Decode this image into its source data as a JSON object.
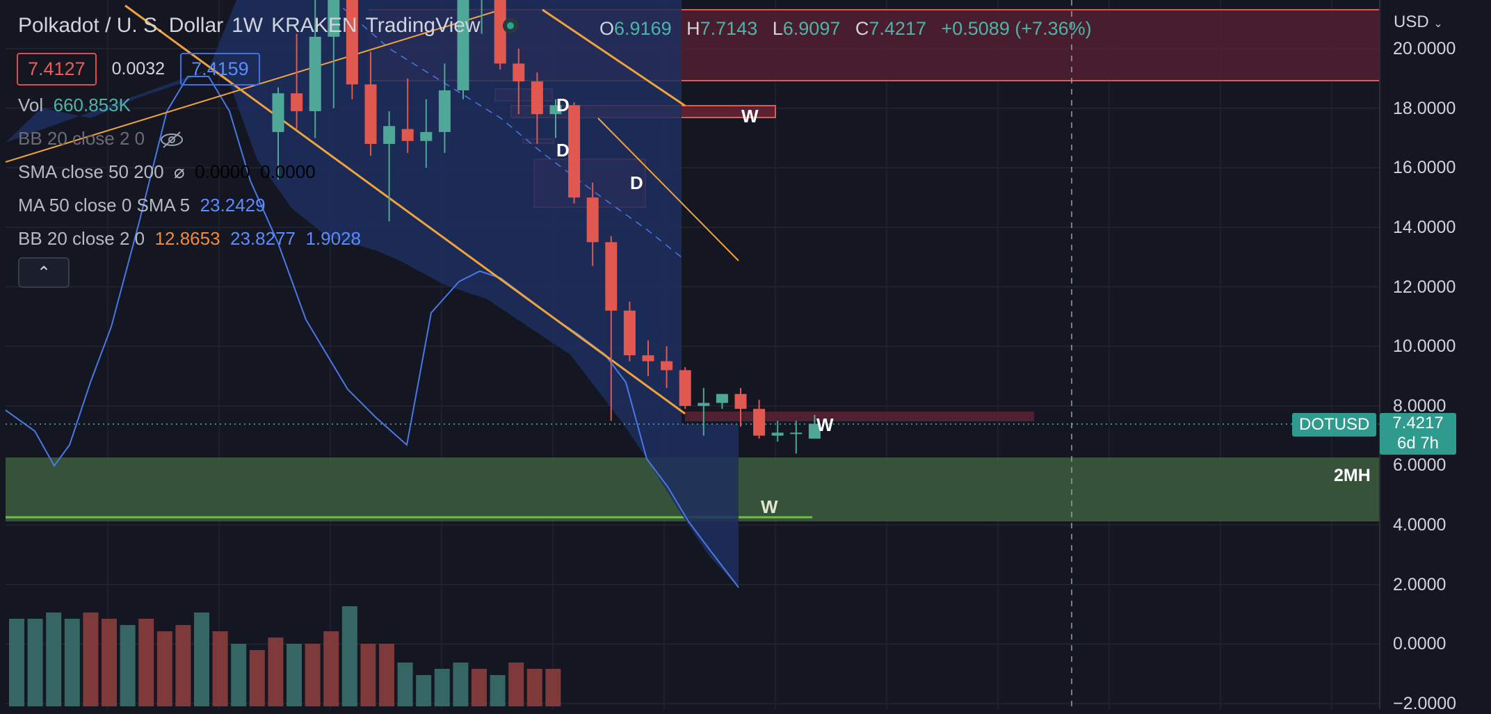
{
  "header": {
    "symbol": "Polkadot / U. S. Dollar",
    "interval": "1W",
    "exchange": "KRAKEN",
    "source": "TradingView"
  },
  "ohlc": {
    "o_label": "O",
    "o": "6.9169",
    "h_label": "H",
    "h": "7.7143",
    "l_label": "L",
    "l": "6.9097",
    "c_label": "C",
    "c": "7.4217",
    "change": "+0.5089 (+7.36%)"
  },
  "quote": {
    "sell": "7.4127",
    "spread": "0.0032",
    "buy": "7.4159"
  },
  "indicators": {
    "vol_label": "Vol",
    "vol_value": "660.853K",
    "bb_hidden": "BB 20 close 2 0",
    "sma_label": "SMA close 50 200",
    "sma_sym": "⌀",
    "sma_v1": "0.0000",
    "sma_v2": "0.0000",
    "ma_label": "MA 50 close 0 SMA 5",
    "ma_value": "23.2429",
    "bb_label": "BB 20 close 2 0",
    "bb_v1": "12.8653",
    "bb_v2": "23.8277",
    "bb_v3": "1.9028"
  },
  "currency": "USD",
  "price_tag": {
    "symbol": "DOTUSD",
    "price": "7.4217",
    "countdown": "6d 7h"
  },
  "zone_label": "2MH",
  "colors": {
    "up": "#4fa897",
    "down": "#e0584f",
    "bg": "#141722",
    "bb_fill": "#1d2f5e",
    "demand_zone": "#3a5a3c",
    "supply_zone": "#5a2233",
    "trendline": "#f0a23c",
    "bb_line": "#4a78e8"
  },
  "chart_data": {
    "type": "candlestick",
    "title": "Polkadot / U. S. Dollar",
    "ylim": [
      -2,
      22
    ],
    "y_ticks": [
      "20.0000",
      "18.0000",
      "16.0000",
      "14.0000",
      "12.0000",
      "10.0000",
      "8.0000",
      "6.0000",
      "4.0000",
      "2.0000",
      "0.0000",
      "−2.0000"
    ],
    "y_tick_values": [
      20,
      18,
      16,
      14,
      12,
      10,
      8,
      6,
      4,
      2,
      0,
      -2
    ],
    "last_price": 7.4217,
    "candles": [
      {
        "o": 17.2,
        "h": 18.7,
        "l": 15.6,
        "c": 18.5
      },
      {
        "o": 18.5,
        "h": 20.5,
        "l": 17.3,
        "c": 17.9
      },
      {
        "o": 17.9,
        "h": 23.0,
        "l": 17.0,
        "c": 20.4
      },
      {
        "o": 20.4,
        "h": 23.0,
        "l": 18.0,
        "c": 22.5
      },
      {
        "o": 22.5,
        "h": 22.6,
        "l": 18.3,
        "c": 18.8
      },
      {
        "o": 18.8,
        "h": 19.9,
        "l": 16.4,
        "c": 16.8
      },
      {
        "o": 16.8,
        "h": 17.9,
        "l": 14.2,
        "c": 17.4
      },
      {
        "o": 17.3,
        "h": 19.0,
        "l": 16.5,
        "c": 16.9
      },
      {
        "o": 16.9,
        "h": 18.3,
        "l": 16.0,
        "c": 17.2
      },
      {
        "o": 17.2,
        "h": 19.5,
        "l": 16.5,
        "c": 18.6
      },
      {
        "o": 18.6,
        "h": 22.5,
        "l": 18.3,
        "c": 22.0
      },
      {
        "o": 22.0,
        "h": 23.5,
        "l": 20.5,
        "c": 23.0
      },
      {
        "o": 23.0,
        "h": 23.2,
        "l": 19.3,
        "c": 19.5
      },
      {
        "o": 19.5,
        "h": 20.0,
        "l": 17.8,
        "c": 18.9
      },
      {
        "o": 18.9,
        "h": 19.2,
        "l": 16.8,
        "c": 17.8
      },
      {
        "o": 17.8,
        "h": 18.3,
        "l": 17.0,
        "c": 18.1
      },
      {
        "o": 18.1,
        "h": 18.2,
        "l": 14.8,
        "c": 15.0
      },
      {
        "o": 15.0,
        "h": 15.5,
        "l": 12.7,
        "c": 13.5
      },
      {
        "o": 13.5,
        "h": 13.7,
        "l": 7.5,
        "c": 11.2
      },
      {
        "o": 11.2,
        "h": 11.5,
        "l": 9.5,
        "c": 9.7
      },
      {
        "o": 9.7,
        "h": 10.2,
        "l": 9.0,
        "c": 9.5
      },
      {
        "o": 9.5,
        "h": 10.0,
        "l": 8.6,
        "c": 9.2
      },
      {
        "o": 9.2,
        "h": 9.3,
        "l": 7.9,
        "c": 8.0
      },
      {
        "o": 8.0,
        "h": 8.6,
        "l": 7.0,
        "c": 8.1
      },
      {
        "o": 8.1,
        "h": 8.3,
        "l": 7.9,
        "c": 8.4
      },
      {
        "o": 8.4,
        "h": 8.6,
        "l": 7.3,
        "c": 7.9
      },
      {
        "o": 7.9,
        "h": 8.2,
        "l": 6.9,
        "c": 7.0
      },
      {
        "o": 7.0,
        "h": 7.5,
        "l": 6.8,
        "c": 7.1
      },
      {
        "o": 7.1,
        "h": 7.5,
        "l": 6.4,
        "c": 7.1
      },
      {
        "o": 6.9,
        "h": 7.7,
        "l": 6.9,
        "c": 7.4
      }
    ],
    "volume": [
      {
        "v": 1.4,
        "up": true
      },
      {
        "v": 1.4,
        "up": true
      },
      {
        "v": 1.5,
        "up": true
      },
      {
        "v": 1.4,
        "up": true
      },
      {
        "v": 1.5,
        "up": false
      },
      {
        "v": 1.4,
        "up": false
      },
      {
        "v": 1.3,
        "up": true
      },
      {
        "v": 1.4,
        "up": false
      },
      {
        "v": 1.2,
        "up": false
      },
      {
        "v": 1.3,
        "up": false
      },
      {
        "v": 1.5,
        "up": true
      },
      {
        "v": 1.2,
        "up": false
      },
      {
        "v": 1.0,
        "up": true
      },
      {
        "v": 0.9,
        "up": false
      },
      {
        "v": 1.1,
        "up": false
      },
      {
        "v": 1.0,
        "up": true
      },
      {
        "v": 1.0,
        "up": false
      },
      {
        "v": 1.2,
        "up": false
      },
      {
        "v": 1.6,
        "up": true
      },
      {
        "v": 1.0,
        "up": false
      },
      {
        "v": 1.0,
        "up": false
      },
      {
        "v": 0.7,
        "up": true
      },
      {
        "v": 0.5,
        "up": true
      },
      {
        "v": 0.6,
        "up": true
      },
      {
        "v": 0.7,
        "up": true
      },
      {
        "v": 0.6,
        "up": false
      },
      {
        "v": 0.5,
        "up": true
      },
      {
        "v": 0.7,
        "up": false
      },
      {
        "v": 0.6,
        "up": false
      },
      {
        "v": 0.6,
        "up": false
      }
    ]
  }
}
